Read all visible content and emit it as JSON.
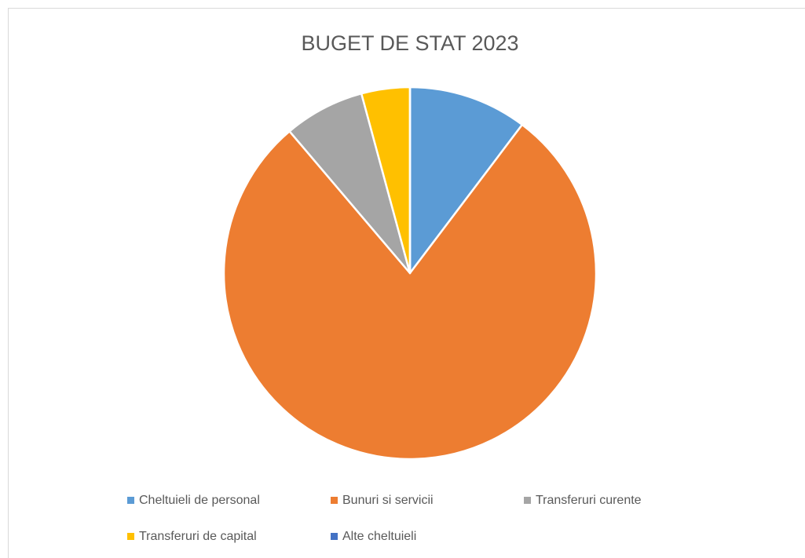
{
  "chart_data": {
    "type": "pie",
    "title": "BUGET DE STAT 2023",
    "categories": [
      "Cheltuieli de personal",
      "Bunuri si servicii",
      "Transferuri curente",
      "Transferuri de capital",
      "Alte cheltuieli"
    ],
    "values": [
      10.3,
      78.5,
      7,
      4.2,
      0
    ],
    "colors": [
      "#5b9bd5",
      "#ed7d31",
      "#a5a5a5",
      "#ffc000",
      "#4472c4"
    ],
    "legend": "bottom"
  }
}
